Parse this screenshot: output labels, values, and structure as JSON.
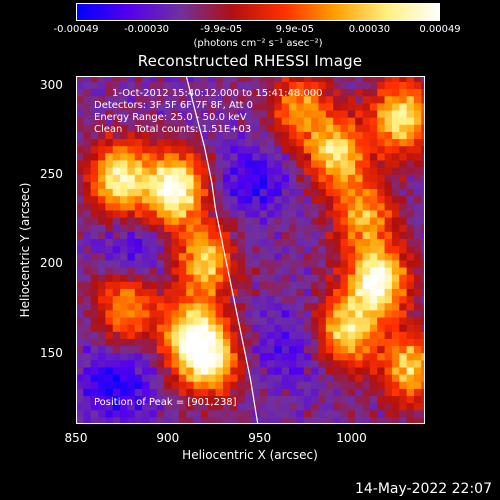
{
  "colorbar": {
    "ticks": [
      "-0.00049",
      "-0.00030",
      "-9.9e-05",
      "9.9e-05",
      "0.00030",
      "0.00049"
    ],
    "tick_values": [
      -0.00049,
      -0.0003,
      -9.9e-05,
      9.9e-05,
      0.0003,
      0.00049
    ],
    "unit_label": "(photons cm⁻² s⁻¹ asec⁻²)",
    "colors": [
      "#0000ff",
      "#5500ee",
      "#7030a0",
      "#b01010",
      "#ff3000",
      "#ffa000",
      "#fff080",
      "#ffffff"
    ]
  },
  "chart_data": {
    "type": "heatmap",
    "title": "Reconstructed RHESSI Image",
    "xlabel": "Heliocentric X (arcsec)",
    "ylabel": "Heliocentric Y (arcsec)",
    "xlim": [
      850,
      1040
    ],
    "ylim": [
      110,
      305
    ],
    "x_ticks": [
      850,
      900,
      950,
      1000
    ],
    "y_ticks": [
      150,
      200,
      250,
      300
    ],
    "annotations": {
      "time_range": "1-Oct-2012 15:40:12.000 to 15:41:48.000",
      "detectors": "Detectors: 3F 5F 6F 7F 8F, Att 0",
      "energy_range": "Energy Range: 25.0 - 50.0 keV",
      "method_counts": "Clean    Total counts: 1.51E+03",
      "peak_position": "Position of Peak = [901,238]"
    },
    "peak": [
      901,
      238
    ],
    "limb_curve": [
      [
        910,
        305
      ],
      [
        915,
        285
      ],
      [
        920,
        265
      ],
      [
        924,
        245
      ],
      [
        926,
        230
      ],
      [
        930,
        210
      ],
      [
        935,
        185
      ],
      [
        940,
        160
      ],
      [
        945,
        135
      ],
      [
        949,
        110
      ]
    ],
    "bright_regions": [
      {
        "x": 902,
        "y": 240,
        "intensity": 1.0
      },
      {
        "x": 872,
        "y": 246,
        "intensity": 0.85
      },
      {
        "x": 918,
        "y": 200,
        "intensity": 0.7
      },
      {
        "x": 910,
        "y": 160,
        "intensity": 0.65
      },
      {
        "x": 920,
        "y": 145,
        "intensity": 0.85
      },
      {
        "x": 875,
        "y": 175,
        "intensity": 0.6
      },
      {
        "x": 1012,
        "y": 188,
        "intensity": 0.95
      },
      {
        "x": 995,
        "y": 160,
        "intensity": 0.75
      },
      {
        "x": 990,
        "y": 260,
        "intensity": 0.75
      },
      {
        "x": 1025,
        "y": 280,
        "intensity": 0.8
      },
      {
        "x": 1030,
        "y": 140,
        "intensity": 0.7
      },
      {
        "x": 970,
        "y": 285,
        "intensity": 0.55
      },
      {
        "x": 1005,
        "y": 225,
        "intensity": 0.6
      }
    ],
    "dark_regions": [
      {
        "x": 870,
        "y": 130,
        "intensity": 0.9
      },
      {
        "x": 945,
        "y": 245,
        "intensity": 0.75
      },
      {
        "x": 880,
        "y": 205,
        "intensity": 0.6
      },
      {
        "x": 965,
        "y": 150,
        "intensity": 0.55
      }
    ]
  },
  "footer": {
    "timestamp": "14-May-2022 22:07"
  }
}
